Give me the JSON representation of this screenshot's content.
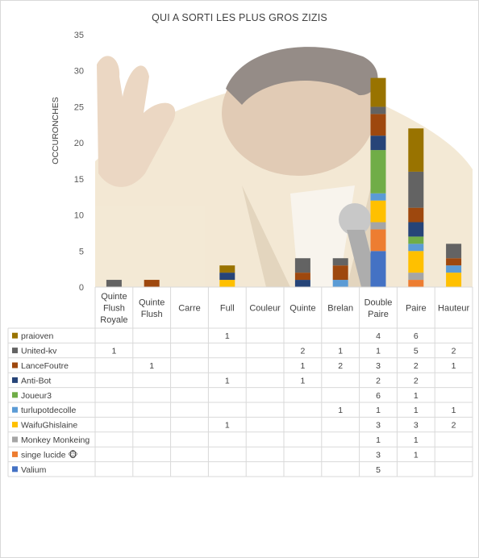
{
  "chart_data": {
    "type": "bar",
    "stacked": true,
    "title": "QUI A SORTI LES PLUS GROS ZIZIS",
    "xlabel": "",
    "ylabel": "OCCURONCHES",
    "ylim": [
      0,
      35
    ],
    "yticks": [
      0,
      5,
      10,
      15,
      20,
      25,
      30,
      35
    ],
    "grid": false,
    "legend": "data-table-left",
    "categories": [
      "Quinte Flush Royale",
      "Quinte Flush",
      "Carre",
      "Full",
      "Couleur",
      "Quinte",
      "Brelan",
      "Double Paire",
      "Paire",
      "Hauteur"
    ],
    "category_lines": [
      [
        "Quinte",
        "Flush",
        "Royale"
      ],
      [
        "Quinte",
        "Flush"
      ],
      [
        "Carre"
      ],
      [
        "Full"
      ],
      [
        "Couleur"
      ],
      [
        "Quinte"
      ],
      [
        "Brelan"
      ],
      [
        "Double",
        "Paire"
      ],
      [
        "Paire"
      ],
      [
        "Hauteur"
      ]
    ],
    "series": [
      {
        "name": "Valium",
        "color": "#4472c4",
        "values": [
          null,
          null,
          null,
          null,
          null,
          null,
          null,
          5,
          null,
          null
        ]
      },
      {
        "name": "singe lucide 🐵",
        "color": "#ed7d31",
        "values": [
          null,
          null,
          null,
          null,
          null,
          null,
          null,
          3,
          1,
          null
        ]
      },
      {
        "name": "Monkey Monkeing",
        "color": "#a5a5a5",
        "values": [
          null,
          null,
          null,
          null,
          null,
          null,
          null,
          1,
          1,
          null
        ]
      },
      {
        "name": "WaifuGhislaine",
        "color": "#ffc000",
        "values": [
          null,
          null,
          null,
          1,
          null,
          null,
          null,
          3,
          3,
          2
        ]
      },
      {
        "name": "turlupotdecolle",
        "color": "#5b9bd5",
        "values": [
          null,
          null,
          null,
          null,
          null,
          null,
          1,
          1,
          1,
          1
        ]
      },
      {
        "name": "Joueur3",
        "color": "#70ad47",
        "values": [
          null,
          null,
          null,
          null,
          null,
          null,
          null,
          6,
          1,
          null
        ]
      },
      {
        "name": "Anti-Bot",
        "color": "#264478",
        "values": [
          null,
          null,
          null,
          1,
          null,
          1,
          null,
          2,
          2,
          null
        ]
      },
      {
        "name": "LanceFoutre",
        "color": "#9e480e",
        "values": [
          null,
          1,
          null,
          null,
          null,
          1,
          2,
          3,
          2,
          1
        ]
      },
      {
        "name": "United-kv",
        "color": "#636363",
        "values": [
          1,
          null,
          null,
          null,
          null,
          2,
          1,
          1,
          5,
          2
        ]
      },
      {
        "name": "praioven",
        "color": "#997300",
        "values": [
          null,
          null,
          null,
          1,
          null,
          null,
          null,
          4,
          6,
          null
        ]
      }
    ]
  }
}
